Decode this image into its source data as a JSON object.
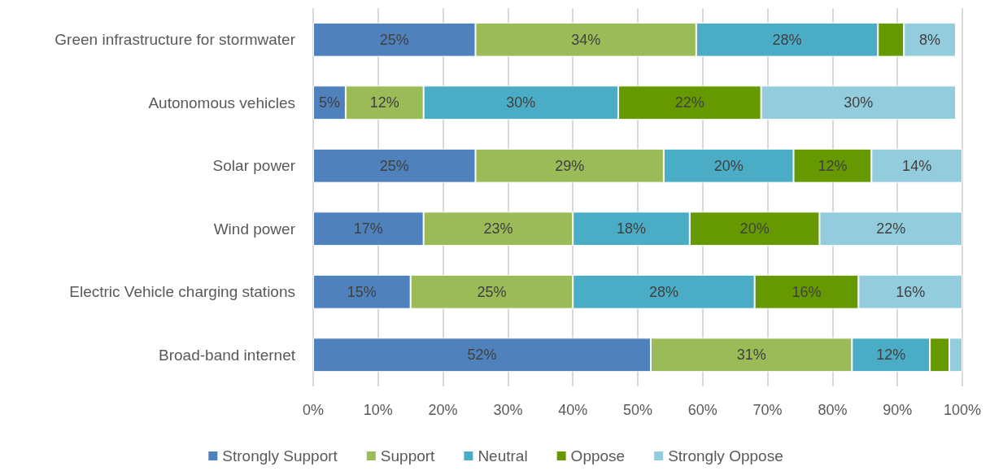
{
  "chart_data": {
    "type": "bar",
    "orientation": "horizontal",
    "stacked": true,
    "categories": [
      "Green infrastructure for stormwater",
      "Autonomous vehicles",
      "Solar power",
      "Wind power",
      "Electric Vehicle charging stations",
      "Broad-band internet"
    ],
    "series": [
      {
        "name": "Strongly Support",
        "color": "#4f81bd",
        "values": [
          25,
          5,
          25,
          17,
          15,
          52
        ],
        "value_labels": [
          "25%",
          "5%",
          "25%",
          "17%",
          "15%",
          "52%"
        ]
      },
      {
        "name": "Support",
        "color": "#9bbb59",
        "values": [
          34,
          12,
          29,
          23,
          25,
          31
        ],
        "value_labels": [
          "34%",
          "12%",
          "29%",
          "23%",
          "25%",
          "31%"
        ]
      },
      {
        "name": "Neutral",
        "color": "#4bacc6",
        "values": [
          28,
          30,
          20,
          18,
          28,
          12
        ],
        "value_labels": [
          "28%",
          "30%",
          "20%",
          "18%",
          "28%",
          "12%"
        ]
      },
      {
        "name": "Oppose",
        "color": "#669900",
        "values": [
          4,
          22,
          12,
          20,
          16,
          3
        ],
        "value_labels": [
          null,
          "22%",
          "12%",
          "20%",
          "16%",
          null
        ]
      },
      {
        "name": "Strongly Oppose",
        "color": "#93cddd",
        "values": [
          8,
          30,
          14,
          22,
          16,
          2
        ],
        "value_labels": [
          "8%",
          "30%",
          "14%",
          "22%",
          "16%",
          null
        ]
      }
    ],
    "xlim": [
      0,
      100
    ],
    "xticks": [
      {
        "value": 0,
        "label": "0%"
      },
      {
        "value": 10,
        "label": "10%"
      },
      {
        "value": 20,
        "label": "20%"
      },
      {
        "value": 30,
        "label": "30%"
      },
      {
        "value": 40,
        "label": "40%"
      },
      {
        "value": 50,
        "label": "50%"
      },
      {
        "value": 60,
        "label": "60%"
      },
      {
        "value": 70,
        "label": "70%"
      },
      {
        "value": 80,
        "label": "80%"
      },
      {
        "value": 90,
        "label": "90%"
      },
      {
        "value": 100,
        "label": "100%"
      }
    ],
    "grid": "x",
    "legend": "bottom"
  }
}
